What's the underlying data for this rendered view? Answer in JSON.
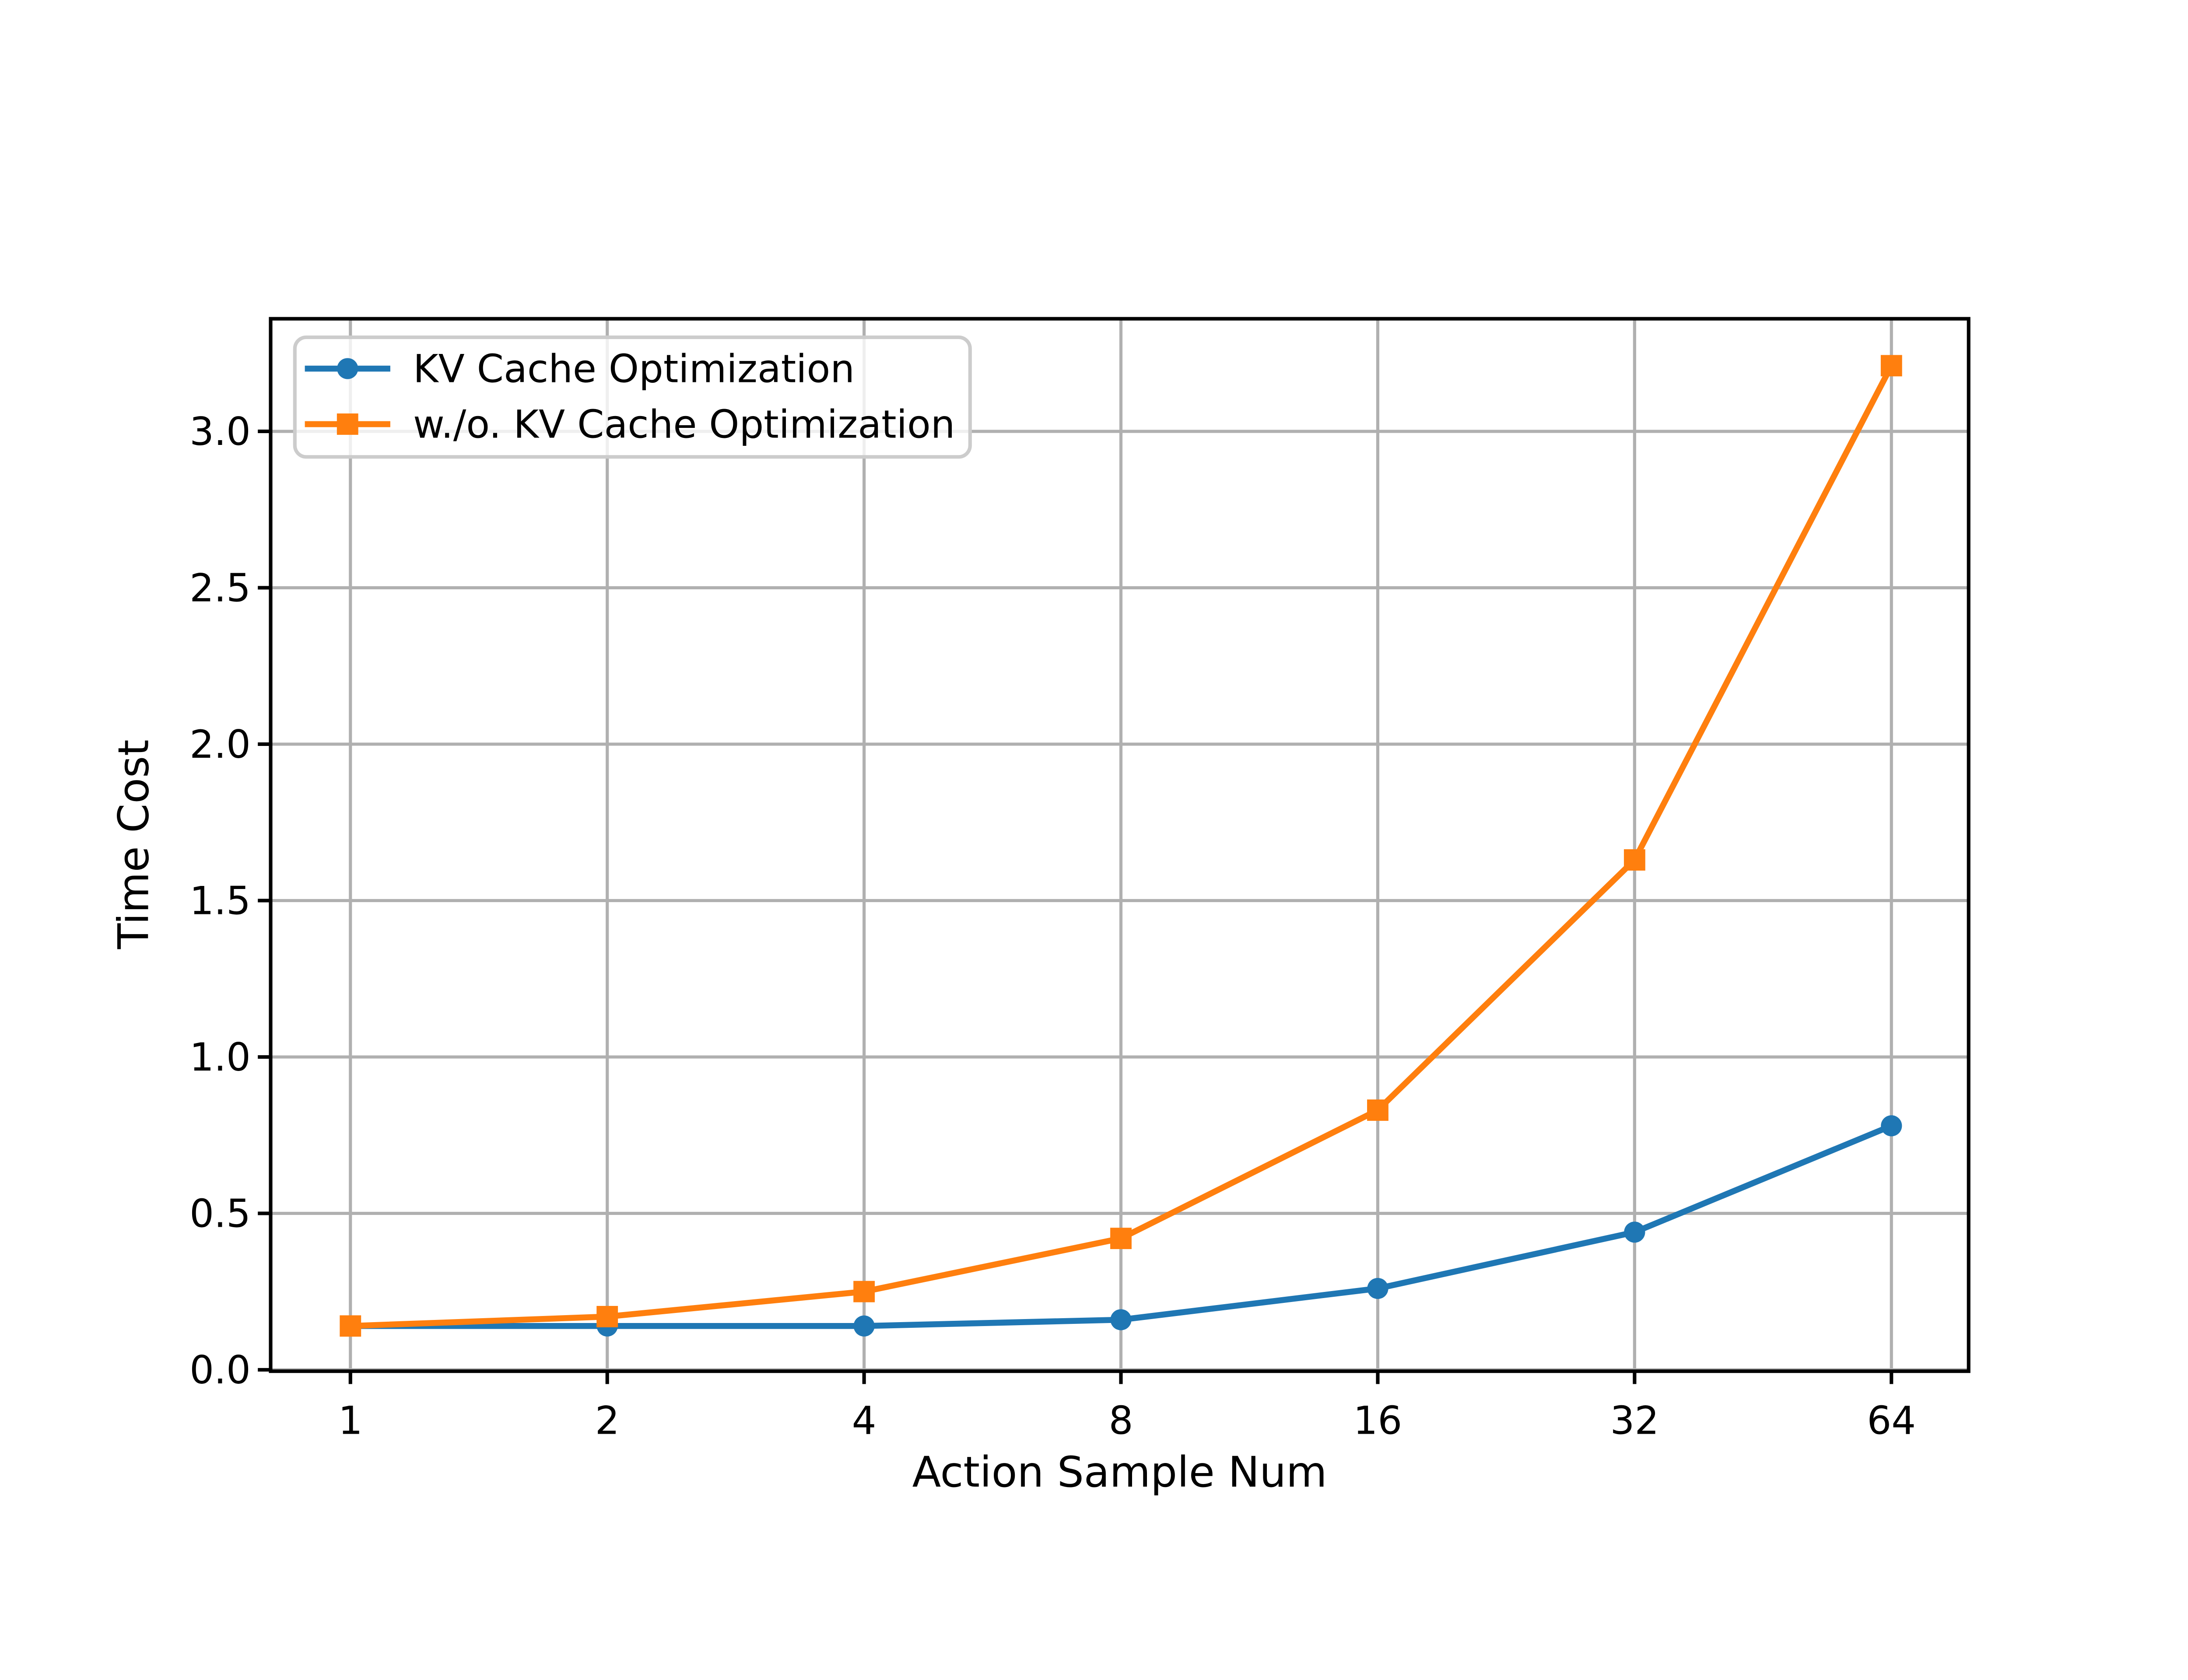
{
  "chart_data": {
    "type": "line",
    "title": "",
    "xlabel": "Action Sample Num",
    "ylabel": "Time Cost",
    "x": [
      1,
      2,
      4,
      8,
      16,
      32,
      64
    ],
    "x_scale": "log2",
    "x_tick_labels": [
      "1",
      "2",
      "4",
      "8",
      "16",
      "32",
      "64"
    ],
    "y_ticks": [
      0.0,
      0.5,
      1.0,
      1.5,
      2.0,
      2.5,
      3.0
    ],
    "y_tick_labels": [
      "0.0",
      "0.5",
      "1.0",
      "1.5",
      "2.0",
      "2.5",
      "3.0"
    ],
    "ylim": [
      0,
      3.36
    ],
    "grid": true,
    "grid_color": "#b0b0b0",
    "legend_position": "upper left",
    "legend_border_color": "#cccccc",
    "series": [
      {
        "name": "KV Cache Optimization",
        "color": "#1f77b4",
        "marker": "circle",
        "values": [
          0.14,
          0.14,
          0.14,
          0.16,
          0.26,
          0.44,
          0.78
        ]
      },
      {
        "name": "w./o. KV Cache Optimization",
        "color": "#ff7f0e",
        "marker": "square",
        "values": [
          0.14,
          0.17,
          0.25,
          0.42,
          0.83,
          1.63,
          3.21
        ]
      }
    ]
  }
}
